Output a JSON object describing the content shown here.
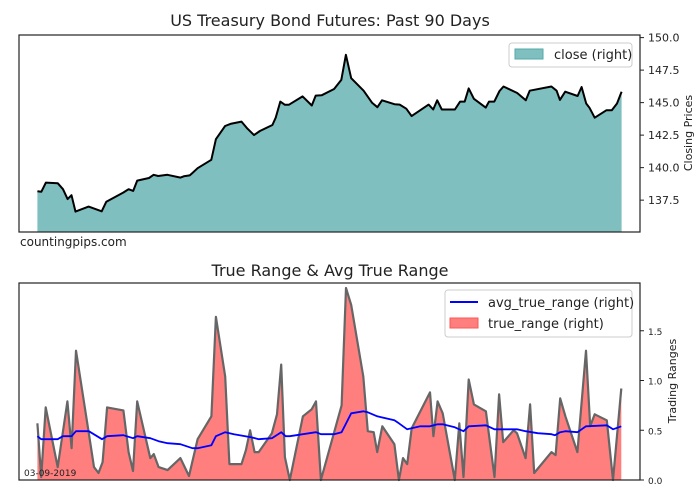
{
  "watermark": "countingpips.com",
  "date_label": "03-09-2019",
  "colors": {
    "close_fill": "#80bfbf",
    "close_line": "#000000",
    "tr_fill": "#ff7f7f",
    "tr_line": "#666666",
    "atr_line": "#0000ff"
  },
  "chart_data": [
    {
      "type": "area",
      "title": "US Treasury Bond Futures: Past 90 Days",
      "xlabel": "",
      "ylabel": "Closing Prices",
      "ylim": [
        135.05,
        150.2
      ],
      "xlim": [
        -2.8,
        91.8
      ],
      "yticks": [
        "137.5",
        "140.0",
        "142.5",
        "145.0",
        "147.5",
        "150.0"
      ],
      "legend": {
        "position": "top-right",
        "entries": [
          "close (right)"
        ]
      },
      "series": [
        {
          "name": "close (right)",
          "x": [
            0,
            0.6,
            1.3,
            3.1,
            3.9,
            4.6,
            5.2,
            5.8,
            7.8,
            9.8,
            10.5,
            13.1,
            13.9,
            14.6,
            15.2,
            17.0,
            17.7,
            18.4,
            19.8,
            21.8,
            22.3,
            23.2,
            23.6,
            24.4,
            26.5,
            27.2,
            28.6,
            29.4,
            31.1,
            32.0,
            33.0,
            33.9,
            35.8,
            36.3,
            37.0,
            37.7,
            38.3,
            40.4,
            41.8,
            42.4,
            43.3,
            45.2,
            46.3,
            47.0,
            47.8,
            49.7,
            51.0,
            51.8,
            52.5,
            54.4,
            55.2,
            56.2,
            57.0,
            59.6,
            60.3,
            60.9,
            61.6,
            63.6,
            64.4,
            65.1,
            65.7,
            66.5,
            68.3,
            68.8,
            69.6,
            70.4,
            71.0,
            73.1,
            74.4,
            75.0,
            78.3,
            79.1,
            79.6,
            80.4,
            82.3,
            82.9,
            83.6,
            84.1,
            84.9,
            86.7,
            87.5,
            88.3,
            89.0
          ],
          "values": [
            138.19,
            138.14,
            138.85,
            138.8,
            138.34,
            137.58,
            137.88,
            136.62,
            137.0,
            136.64,
            137.38,
            138.09,
            138.34,
            138.21,
            139.0,
            139.2,
            139.45,
            139.36,
            139.45,
            139.23,
            139.33,
            139.4,
            139.58,
            139.96,
            140.6,
            142.19,
            143.2,
            143.36,
            143.54,
            143.0,
            142.5,
            142.82,
            143.28,
            143.84,
            145.08,
            144.83,
            144.83,
            145.48,
            144.78,
            145.54,
            145.56,
            146.05,
            146.75,
            148.68,
            146.88,
            145.92,
            144.98,
            144.65,
            145.18,
            144.88,
            144.85,
            144.53,
            143.96,
            144.85,
            144.47,
            145.18,
            144.47,
            144.47,
            145.08,
            145.08,
            146.09,
            145.29,
            144.62,
            145.08,
            145.08,
            145.89,
            146.24,
            145.74,
            145.18,
            145.92,
            146.24,
            145.92,
            145.21,
            145.84,
            145.51,
            146.2,
            144.93,
            144.6,
            143.84,
            144.42,
            144.42,
            144.93,
            145.84
          ]
        }
      ]
    },
    {
      "type": "area",
      "title": "True Range & Avg True Range",
      "xlabel": "",
      "ylabel": "Trading Ranges",
      "ylim": [
        0,
        1.98
      ],
      "xlim": [
        -2.8,
        91.8
      ],
      "yticks": [
        "0.0",
        "0.5",
        "1.0",
        "1.5"
      ],
      "legend": {
        "position": "top-right",
        "entries": [
          "avg_true_range (right)",
          "true_range (right)"
        ]
      },
      "series": [
        {
          "name": "true_range (right)",
          "x": [
            0,
            0.58,
            1.26,
            3.1,
            4.58,
            5.21,
            5.89,
            7.84,
            8.63,
            9.31,
            9.94,
            10.62,
            13.1,
            13.89,
            14.57,
            15.2,
            17.2,
            17.73,
            18.46,
            19.83,
            21.78,
            23.09,
            24.41,
            26.51,
            27.19,
            28.61,
            29.25,
            31.09,
            31.77,
            32.4,
            33.09,
            33.72,
            35.72,
            36.5,
            37.14,
            37.71,
            38.45,
            40.45,
            41.77,
            42.45,
            43.19,
            46.34,
            47.02,
            47.81,
            49.65,
            50.34,
            51.23,
            51.76,
            52.55,
            54.39,
            55.07,
            55.7,
            56.33,
            57.02,
            59.81,
            60.33,
            60.96,
            61.75,
            63.59,
            64.28,
            64.91,
            65.7,
            66.49,
            68.33,
            69.64,
            70.33,
            70.96,
            72.54,
            73.06,
            74.38,
            75.06,
            75.69,
            78.32,
            78.95,
            79.64,
            80.43,
            82.27,
            83.58,
            84.21,
            84.9,
            86.74,
            87.69,
            88.95
          ],
          "values": [
            0.57,
            0.03,
            0.73,
            0.13,
            0.79,
            0.32,
            1.3,
            0.47,
            0.13,
            0.07,
            0.18,
            0.73,
            0.7,
            0.28,
            0.09,
            0.79,
            0.22,
            0.26,
            0.13,
            0.1,
            0.22,
            0.04,
            0.41,
            0.64,
            1.64,
            1.04,
            0.16,
            0.16,
            0.3,
            0.5,
            0.28,
            0.28,
            0.47,
            0.66,
            1.16,
            0.23,
            0.0,
            0.64,
            0.71,
            0.79,
            0.0,
            0.75,
            1.93,
            1.76,
            1.04,
            0.49,
            0.48,
            0.28,
            0.54,
            0.36,
            0.0,
            0.22,
            0.16,
            0.52,
            0.88,
            0.44,
            0.79,
            0.67,
            0.0,
            0.57,
            0.03,
            1.01,
            0.76,
            0.69,
            0.03,
            0.86,
            0.38,
            0.5,
            0.47,
            0.22,
            0.76,
            0.07,
            0.28,
            0.25,
            0.82,
            0.64,
            0.28,
            1.3,
            0.54,
            0.66,
            0.6,
            0.0,
            0.92
          ]
        },
        {
          "name": "avg_true_range (right)",
          "x": [
            0,
            0.58,
            3.1,
            3.89,
            5.21,
            5.89,
            7.84,
            9.84,
            10.62,
            13.1,
            14.57,
            15.2,
            17.2,
            18.46,
            19.83,
            21.78,
            23.62,
            24.41,
            26.51,
            27.19,
            28.61,
            29.93,
            32.56,
            33.72,
            35.72,
            37.14,
            37.82,
            38.45,
            40.45,
            42.45,
            43.19,
            45.18,
            46.34,
            47.81,
            49.65,
            50.34,
            51.76,
            54.39,
            55.07,
            56.33,
            58.33,
            59.81,
            60.96,
            61.75,
            63.59,
            64.91,
            65.7,
            68.33,
            69.64,
            73.06,
            74.38,
            76.22,
            78.32,
            78.85,
            79.64,
            80.43,
            82.27,
            83.58,
            86.74,
            87.69,
            88.95
          ],
          "values": [
            0.44,
            0.41,
            0.41,
            0.44,
            0.44,
            0.49,
            0.49,
            0.41,
            0.44,
            0.45,
            0.42,
            0.44,
            0.42,
            0.39,
            0.37,
            0.36,
            0.32,
            0.32,
            0.35,
            0.44,
            0.48,
            0.46,
            0.43,
            0.41,
            0.42,
            0.48,
            0.44,
            0.44,
            0.46,
            0.48,
            0.46,
            0.46,
            0.48,
            0.67,
            0.69,
            0.68,
            0.64,
            0.6,
            0.57,
            0.51,
            0.54,
            0.54,
            0.56,
            0.56,
            0.53,
            0.49,
            0.54,
            0.55,
            0.51,
            0.51,
            0.49,
            0.47,
            0.46,
            0.45,
            0.48,
            0.49,
            0.48,
            0.54,
            0.55,
            0.51,
            0.54
          ]
        }
      ]
    }
  ]
}
